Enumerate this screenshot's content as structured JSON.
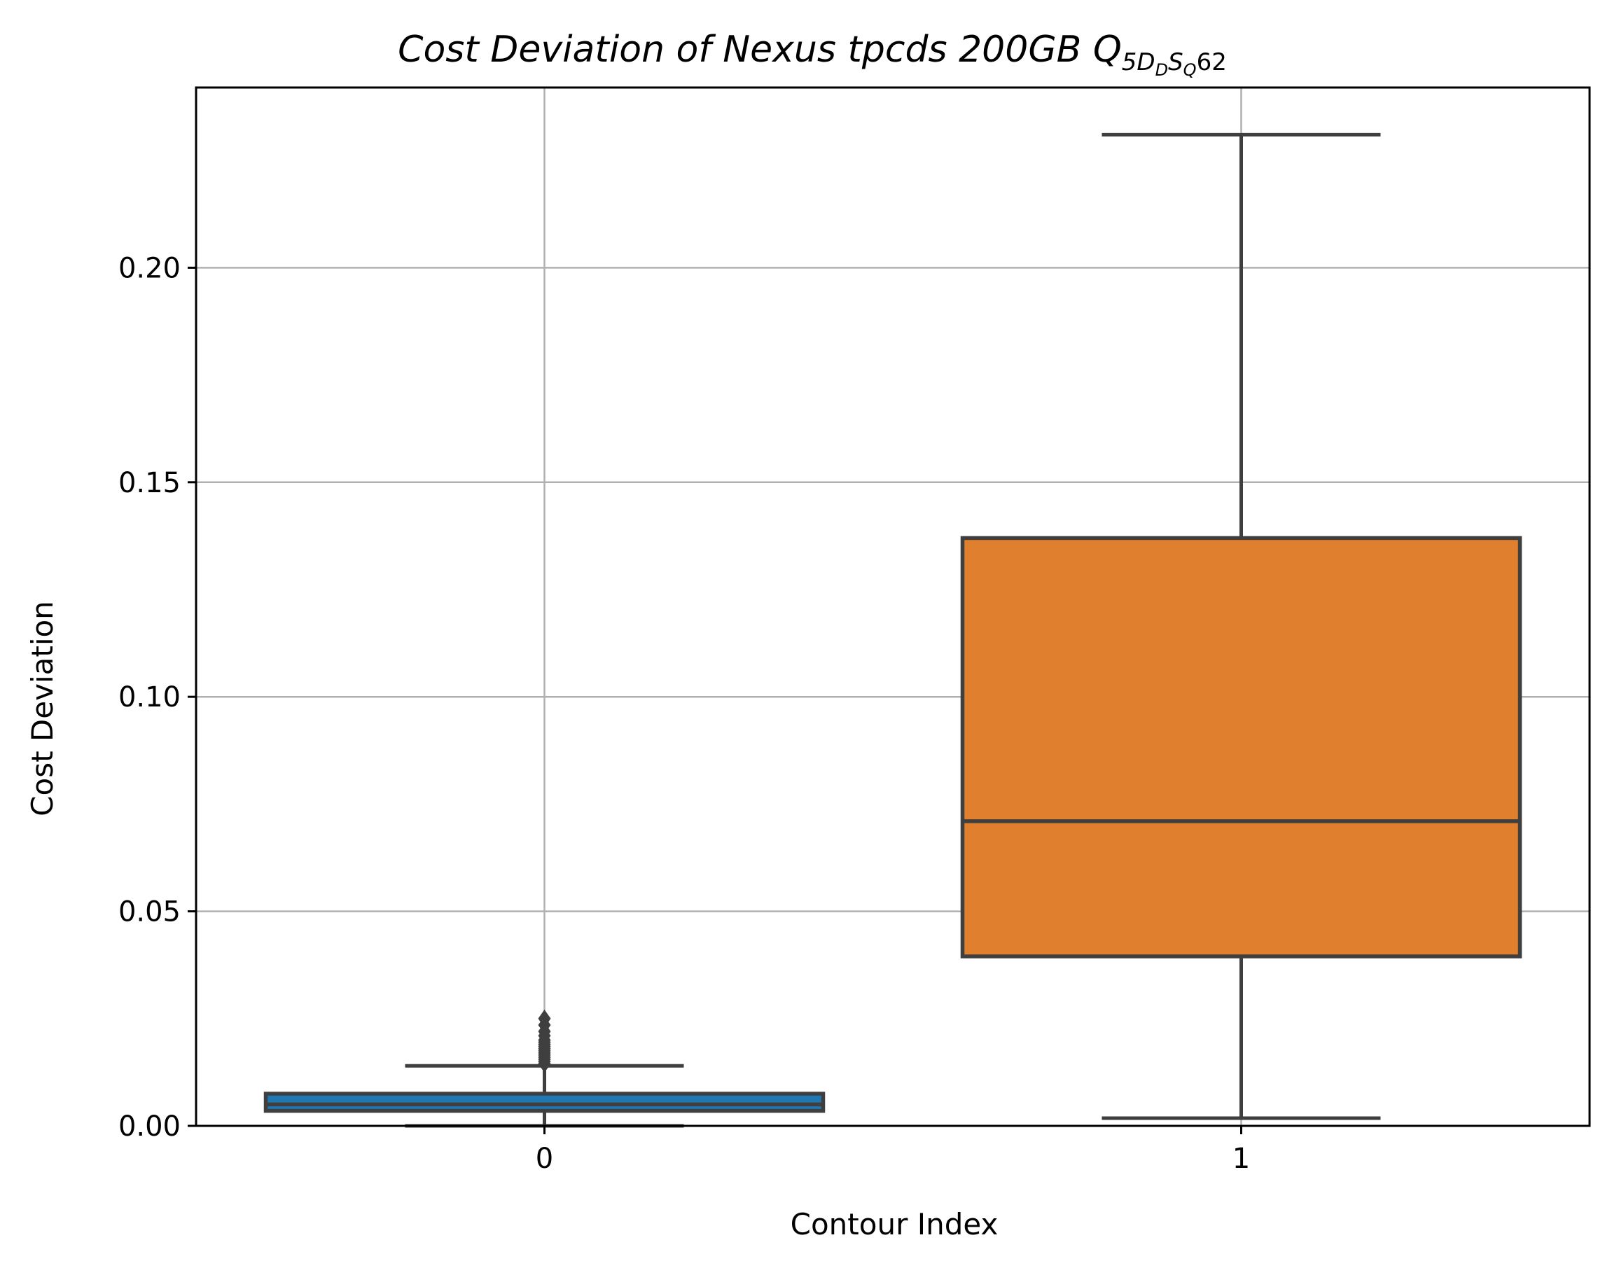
{
  "chart_data": {
    "type": "box",
    "title": {
      "main": "Cost Deviation of Nexus tpcds  200GB  ",
      "query_letter": "Q",
      "query_sub_a": "5",
      "query_sub_d": "D",
      "query_sub_dd": "D",
      "query_sub_s": "S",
      "query_sub_q": "Q",
      "query_number": "62"
    },
    "xlabel": "Contour Index",
    "ylabel": "Cost Deviation",
    "ylim": [
      0.0,
      0.242
    ],
    "yticks": [
      0.0,
      0.05,
      0.1,
      0.15,
      0.2
    ],
    "ytick_labels": [
      "0.00",
      "0.05",
      "0.10",
      "0.15",
      "0.20"
    ],
    "grid": true,
    "categories": [
      "0",
      "1"
    ],
    "boxes": [
      {
        "category": "0",
        "color": "#1f77b4",
        "whisker_low": 0.0,
        "q1": 0.0035,
        "median": 0.005,
        "q3": 0.0075,
        "whisker_high": 0.014,
        "outliers": [
          0.0145,
          0.015,
          0.0155,
          0.016,
          0.0165,
          0.017,
          0.0175,
          0.018,
          0.0185,
          0.019,
          0.0195,
          0.02,
          0.021,
          0.022,
          0.0235,
          0.025
        ]
      },
      {
        "category": "1",
        "color": "#e0802e",
        "whisker_low": 0.0018,
        "q1": 0.0395,
        "median": 0.071,
        "q3": 0.137,
        "whisker_high": 0.231,
        "outliers": []
      }
    ],
    "colors": {
      "box_edge": "#3f3f3f",
      "grid": "#b0b0b0",
      "axes": "#000000"
    }
  }
}
